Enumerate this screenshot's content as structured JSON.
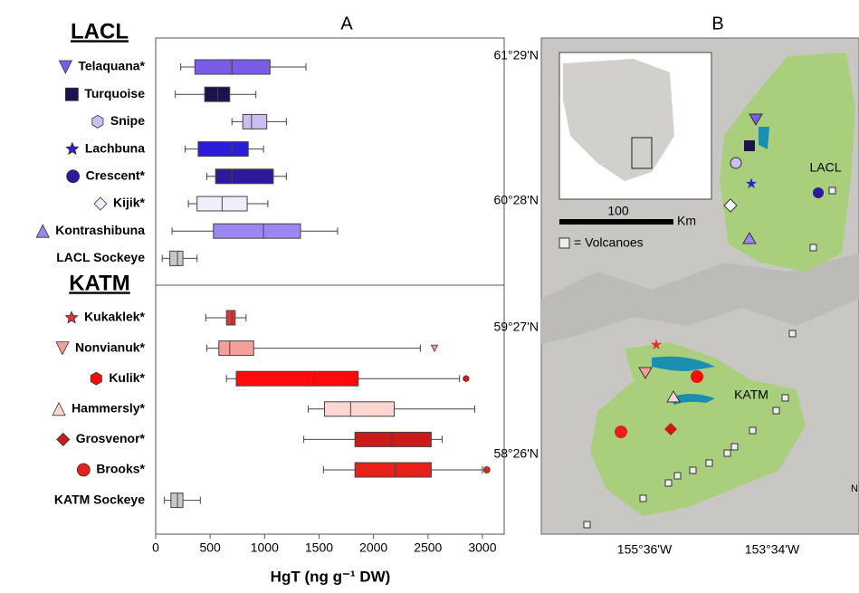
{
  "chart_data": {
    "type": "box",
    "panel_label": "A",
    "xlabel": "HgT (ng g⁻¹ DW)",
    "xlim": [
      0,
      3200
    ],
    "xticks": [
      0,
      500,
      1000,
      1500,
      2000,
      2500,
      3000
    ],
    "groups": [
      {
        "title": "LACL",
        "series": [
          {
            "name": "Telaquana*",
            "color": "#7b5ce8",
            "marker": "triangle-down",
            "stats": {
              "min": 230,
              "q1": 360,
              "median": 700,
              "q3": 1050,
              "max": 1380
            }
          },
          {
            "name": "Turquoise",
            "color": "#1c1250",
            "marker": "square",
            "stats": {
              "min": 180,
              "q1": 450,
              "median": 570,
              "q3": 680,
              "max": 920
            }
          },
          {
            "name": "Snipe",
            "color": "#cbbff2",
            "marker": "hexagon",
            "stats": {
              "min": 700,
              "q1": 800,
              "median": 880,
              "q3": 1020,
              "max": 1200
            }
          },
          {
            "name": "Lachbuna",
            "color": "#2b1ddb",
            "marker": "star",
            "stats": {
              "min": 270,
              "q1": 390,
              "median": 700,
              "q3": 850,
              "max": 990
            }
          },
          {
            "name": "Crescent*",
            "color": "#2b1a9a",
            "marker": "circle",
            "stats": {
              "min": 470,
              "q1": 550,
              "median": 700,
              "q3": 1080,
              "max": 1200
            }
          },
          {
            "name": "Kijik*",
            "color": "#f0eefa",
            "marker": "diamond",
            "stats": {
              "min": 300,
              "q1": 380,
              "median": 610,
              "q3": 840,
              "max": 1030
            }
          },
          {
            "name": "Kontrashibuna",
            "color": "#9b85f0",
            "marker": "triangle-up",
            "stats": {
              "min": 150,
              "q1": 530,
              "median": 990,
              "q3": 1330,
              "max": 1670
            }
          },
          {
            "name": "LACL Sockeye",
            "color": "#c8c8c8",
            "marker": "none",
            "stats": {
              "min": 60,
              "q1": 130,
              "median": 200,
              "q3": 250,
              "max": 380
            }
          }
        ]
      },
      {
        "title": "KATM",
        "series": [
          {
            "name": "Kukaklek*",
            "color": "#e83030",
            "marker": "star",
            "stats": {
              "min": 460,
              "q1": 650,
              "median": 700,
              "q3": 730,
              "max": 830
            }
          },
          {
            "name": "Nonvianuk*",
            "color": "#f4a09a",
            "marker": "triangle-down",
            "stats": {
              "min": 470,
              "q1": 580,
              "median": 680,
              "q3": 900,
              "max": 2430
            },
            "outliers": [
              2560
            ]
          },
          {
            "name": "Kulik*",
            "color": "#ff0a0a",
            "marker": "hexagon",
            "stats": {
              "min": 650,
              "q1": 740,
              "median": 1460,
              "q3": 1860,
              "max": 2790
            },
            "outliers": [
              2850
            ]
          },
          {
            "name": "Hammersly*",
            "color": "#fcd7d2",
            "marker": "triangle-up",
            "stats": {
              "min": 1400,
              "q1": 1550,
              "median": 1790,
              "q3": 2190,
              "max": 2930
            }
          },
          {
            "name": "Grosvenor*",
            "color": "#cc1a1a",
            "marker": "diamond",
            "stats": {
              "min": 1360,
              "q1": 1830,
              "median": 2170,
              "q3": 2530,
              "max": 2630
            }
          },
          {
            "name": "Brooks*",
            "color": "#e8201a",
            "marker": "circle",
            "stats": {
              "min": 1540,
              "q1": 1830,
              "median": 2200,
              "q3": 2530,
              "max": 3000
            },
            "outliers": [
              3040
            ]
          },
          {
            "name": "KATM Sockeye",
            "color": "#c8c8c8",
            "marker": "none",
            "stats": {
              "min": 80,
              "q1": 140,
              "median": 200,
              "q3": 250,
              "max": 410
            }
          }
        ]
      }
    ]
  },
  "map": {
    "panel_label": "B",
    "lat_labels": [
      "61°29'N",
      "60°28'N",
      "59°27'N",
      "58°26'N"
    ],
    "lon_labels": [
      "155°36'W",
      "153°34'W"
    ],
    "scale_value": "100",
    "scale_unit": "Km",
    "volcano_legend": "= Volcanoes",
    "region_labels": [
      "LACL",
      "KATM"
    ],
    "north": "N"
  }
}
